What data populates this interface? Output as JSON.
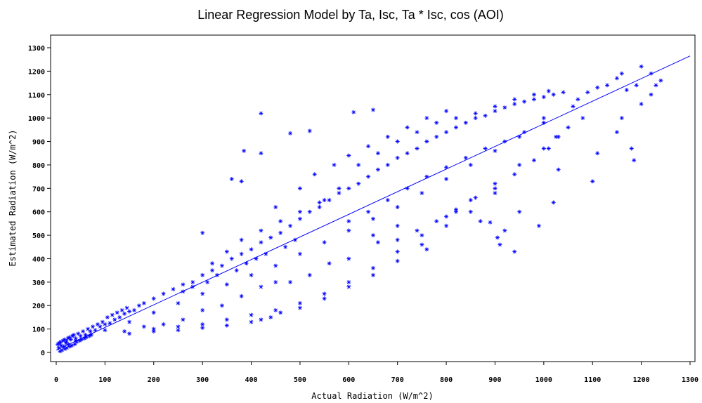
{
  "chart_data": {
    "type": "scatter",
    "title": "Linear Regression Model by Ta, Isc, Ta * Isc, cos (AOI)",
    "xlabel": "Actual Radiation (W/m^2)",
    "ylabel": "Estimated Radiation (W/m^2)",
    "xlim": [
      0,
      1300
    ],
    "ylim": [
      0,
      1300
    ],
    "xticks": [
      "0",
      "100",
      "200",
      "300",
      "400",
      "500",
      "600",
      "700",
      "800",
      "900",
      "1000",
      "1100",
      "1200",
      "1300"
    ],
    "yticks": [
      "0",
      "100",
      "200",
      "300",
      "400",
      "500",
      "600",
      "700",
      "800",
      "900",
      "1000",
      "1100",
      "1200",
      "1300"
    ],
    "grid": false,
    "marker": "asterisk",
    "point_color": "#0000ff",
    "line_color": "#0000ff",
    "regression_line": {
      "x": [
        0,
        1300
      ],
      "y": [
        10,
        1265
      ]
    },
    "points": [
      [
        5,
        20
      ],
      [
        10,
        30
      ],
      [
        15,
        25
      ],
      [
        20,
        40
      ],
      [
        25,
        35
      ],
      [
        30,
        55
      ],
      [
        40,
        60
      ],
      [
        50,
        70
      ],
      [
        60,
        75
      ],
      [
        70,
        90
      ],
      [
        80,
        95
      ],
      [
        90,
        110
      ],
      [
        100,
        120
      ],
      [
        110,
        125
      ],
      [
        120,
        140
      ],
      [
        130,
        150
      ],
      [
        140,
        165
      ],
      [
        150,
        175
      ],
      [
        160,
        180
      ],
      [
        170,
        200
      ],
      [
        180,
        210
      ],
      [
        200,
        230
      ],
      [
        220,
        250
      ],
      [
        240,
        270
      ],
      [
        260,
        290
      ],
      [
        280,
        300
      ],
      [
        300,
        330
      ],
      [
        320,
        350
      ],
      [
        340,
        370
      ],
      [
        360,
        400
      ],
      [
        380,
        420
      ],
      [
        400,
        440
      ],
      [
        420,
        470
      ],
      [
        440,
        490
      ],
      [
        460,
        510
      ],
      [
        480,
        540
      ],
      [
        500,
        570
      ],
      [
        520,
        600
      ],
      [
        540,
        620
      ],
      [
        560,
        650
      ],
      [
        580,
        680
      ],
      [
        600,
        700
      ],
      [
        620,
        720
      ],
      [
        640,
        750
      ],
      [
        660,
        780
      ],
      [
        680,
        800
      ],
      [
        700,
        830
      ],
      [
        720,
        850
      ],
      [
        740,
        870
      ],
      [
        760,
        900
      ],
      [
        780,
        920
      ],
      [
        800,
        940
      ],
      [
        820,
        960
      ],
      [
        840,
        980
      ],
      [
        860,
        1000
      ],
      [
        880,
        1010
      ],
      [
        900,
        1030
      ],
      [
        920,
        1045
      ],
      [
        940,
        1060
      ],
      [
        960,
        1070
      ],
      [
        980,
        1080
      ],
      [
        1000,
        1090
      ],
      [
        1020,
        1100
      ],
      [
        1040,
        1110
      ],
      [
        100,
        95
      ],
      [
        150,
        130
      ],
      [
        200,
        170
      ],
      [
        250,
        210
      ],
      [
        300,
        250
      ],
      [
        350,
        290
      ],
      [
        400,
        330
      ],
      [
        450,
        370
      ],
      [
        500,
        420
      ],
      [
        550,
        470
      ],
      [
        600,
        520
      ],
      [
        650,
        570
      ],
      [
        700,
        620
      ],
      [
        750,
        680
      ],
      [
        800,
        740
      ],
      [
        850,
        800
      ],
      [
        900,
        860
      ],
      [
        950,
        920
      ],
      [
        1000,
        980
      ],
      [
        200,
        100
      ],
      [
        250,
        110
      ],
      [
        300,
        120
      ],
      [
        350,
        140
      ],
      [
        400,
        160
      ],
      [
        450,
        180
      ],
      [
        500,
        210
      ],
      [
        550,
        250
      ],
      [
        600,
        300
      ],
      [
        650,
        360
      ],
      [
        700,
        430
      ],
      [
        750,
        500
      ],
      [
        800,
        580
      ],
      [
        850,
        650
      ],
      [
        900,
        720
      ],
      [
        950,
        800
      ],
      [
        1000,
        870
      ],
      [
        1030,
        920
      ],
      [
        150,
        80
      ],
      [
        200,
        90
      ],
      [
        250,
        95
      ],
      [
        300,
        105
      ],
      [
        350,
        115
      ],
      [
        400,
        130
      ],
      [
        420,
        140
      ],
      [
        440,
        150
      ],
      [
        460,
        170
      ],
      [
        500,
        190
      ],
      [
        550,
        230
      ],
      [
        600,
        280
      ],
      [
        650,
        330
      ],
      [
        700,
        390
      ],
      [
        750,
        460
      ],
      [
        800,
        540
      ],
      [
        850,
        600
      ],
      [
        900,
        680
      ],
      [
        420,
        1020
      ],
      [
        480,
        935
      ],
      [
        520,
        945
      ],
      [
        610,
        1025
      ],
      [
        650,
        1035
      ],
      [
        385,
        860
      ],
      [
        420,
        850
      ],
      [
        380,
        730
      ],
      [
        300,
        510
      ],
      [
        360,
        740
      ],
      [
        910,
        460
      ],
      [
        905,
        490
      ],
      [
        920,
        520
      ],
      [
        890,
        555
      ],
      [
        950,
        600
      ],
      [
        990,
        540
      ],
      [
        1020,
        640
      ],
      [
        1030,
        780
      ],
      [
        1100,
        730
      ],
      [
        1110,
        850
      ],
      [
        1150,
        940
      ],
      [
        1180,
        870
      ],
      [
        1185,
        820
      ],
      [
        1160,
        1000
      ],
      [
        1200,
        1060
      ],
      [
        1220,
        1100
      ],
      [
        1230,
        1140
      ],
      [
        1240,
        1160
      ],
      [
        1200,
        1220
      ],
      [
        1220,
        1190
      ],
      [
        1160,
        1190
      ],
      [
        1150,
        1170
      ],
      [
        1130,
        1140
      ],
      [
        1110,
        1130
      ],
      [
        1190,
        1140
      ],
      [
        1170,
        1120
      ],
      [
        1090,
        1110
      ],
      [
        1070,
        1080
      ],
      [
        1060,
        1050
      ],
      [
        1080,
        1000
      ],
      [
        1050,
        960
      ],
      [
        1025,
        920
      ],
      [
        940,
        430
      ],
      [
        870,
        560
      ],
      [
        820,
        600
      ],
      [
        760,
        440
      ],
      [
        700,
        540
      ],
      [
        650,
        500
      ],
      [
        600,
        400
      ],
      [
        560,
        380
      ],
      [
        520,
        330
      ],
      [
        480,
        300
      ],
      [
        450,
        300
      ],
      [
        420,
        280
      ],
      [
        380,
        240
      ],
      [
        340,
        200
      ],
      [
        300,
        180
      ],
      [
        260,
        140
      ],
      [
        220,
        120
      ],
      [
        180,
        110
      ],
      [
        140,
        90
      ],
      [
        550,
        650
      ],
      [
        580,
        700
      ],
      [
        620,
        800
      ],
      [
        660,
        850
      ],
      [
        700,
        900
      ],
      [
        740,
        940
      ],
      [
        780,
        980
      ],
      [
        820,
        1000
      ],
      [
        860,
        1020
      ],
      [
        900,
        1050
      ],
      [
        940,
        1080
      ],
      [
        980,
        1100
      ],
      [
        1010,
        1115
      ],
      [
        450,
        620
      ],
      [
        500,
        700
      ],
      [
        530,
        760
      ],
      [
        570,
        800
      ],
      [
        600,
        840
      ],
      [
        640,
        880
      ],
      [
        680,
        920
      ],
      [
        720,
        960
      ],
      [
        760,
        1000
      ],
      [
        800,
        1030
      ],
      [
        320,
        380
      ],
      [
        350,
        430
      ],
      [
        380,
        480
      ],
      [
        420,
        520
      ],
      [
        460,
        560
      ],
      [
        500,
        600
      ],
      [
        540,
        640
      ],
      [
        600,
        560
      ],
      [
        640,
        600
      ],
      [
        680,
        650
      ],
      [
        720,
        700
      ],
      [
        760,
        750
      ],
      [
        800,
        790
      ],
      [
        840,
        830
      ],
      [
        880,
        870
      ],
      [
        920,
        900
      ],
      [
        960,
        940
      ],
      [
        1000,
        1000
      ],
      [
        660,
        470
      ],
      [
        700,
        480
      ],
      [
        740,
        520
      ],
      [
        780,
        560
      ],
      [
        820,
        610
      ],
      [
        860,
        660
      ],
      [
        900,
        700
      ],
      [
        940,
        760
      ],
      [
        980,
        820
      ],
      [
        1010,
        870
      ],
      [
        260,
        260
      ],
      [
        280,
        280
      ],
      [
        310,
        300
      ],
      [
        330,
        330
      ],
      [
        370,
        350
      ],
      [
        390,
        380
      ],
      [
        410,
        400
      ],
      [
        430,
        420
      ],
      [
        470,
        450
      ],
      [
        490,
        480
      ],
      [
        40,
        50
      ],
      [
        45,
        80
      ],
      [
        55,
        90
      ],
      [
        65,
        100
      ],
      [
        75,
        110
      ],
      [
        85,
        120
      ],
      [
        95,
        130
      ],
      [
        105,
        150
      ],
      [
        115,
        160
      ],
      [
        125,
        170
      ],
      [
        135,
        180
      ],
      [
        145,
        190
      ],
      [
        8,
        5
      ],
      [
        12,
        10
      ],
      [
        18,
        15
      ],
      [
        22,
        20
      ],
      [
        28,
        25
      ],
      [
        32,
        30
      ],
      [
        38,
        35
      ],
      [
        42,
        45
      ],
      [
        48,
        50
      ],
      [
        52,
        55
      ],
      [
        58,
        60
      ],
      [
        62,
        65
      ],
      [
        68,
        70
      ],
      [
        72,
        75
      ],
      [
        3,
        35
      ],
      [
        6,
        40
      ],
      [
        9,
        45
      ],
      [
        14,
        50
      ],
      [
        17,
        55
      ],
      [
        21,
        48
      ],
      [
        24,
        60
      ],
      [
        27,
        65
      ],
      [
        33,
        70
      ],
      [
        36,
        75
      ]
    ]
  }
}
